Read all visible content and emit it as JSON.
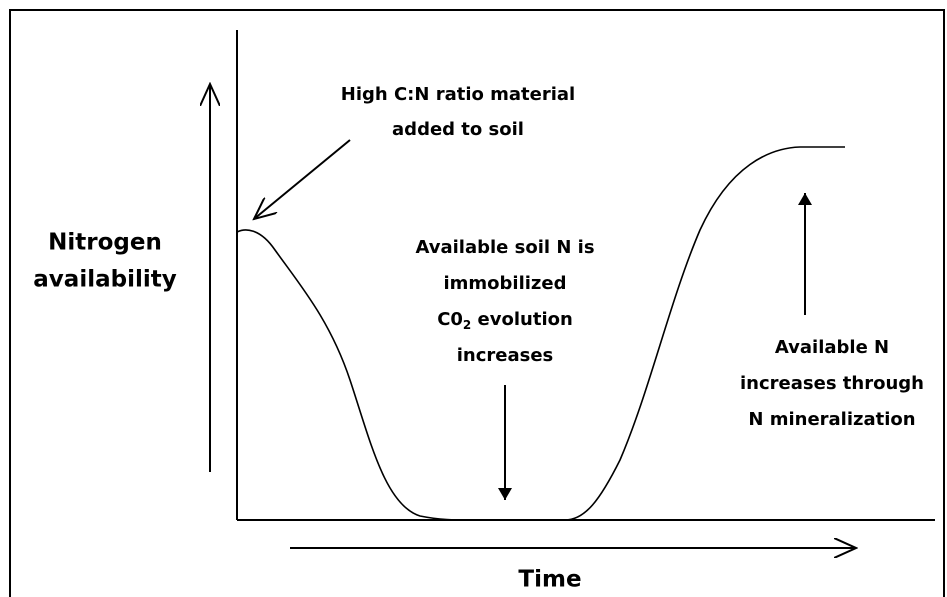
{
  "y_label": [
    "Nitrogen",
    "availability"
  ],
  "x_label": "Time",
  "annotations": {
    "addition": [
      "High C:N ratio material",
      "added to soil"
    ],
    "immobilization": {
      "line1": "Available soil N is",
      "line2": "immobilized",
      "co2_main": "C0",
      "co2_sub": "2",
      "co2_rest": " evolution",
      "line4": "increases"
    },
    "mineralization": [
      "Available N",
      "increases through",
      "N mineralization"
    ]
  }
}
